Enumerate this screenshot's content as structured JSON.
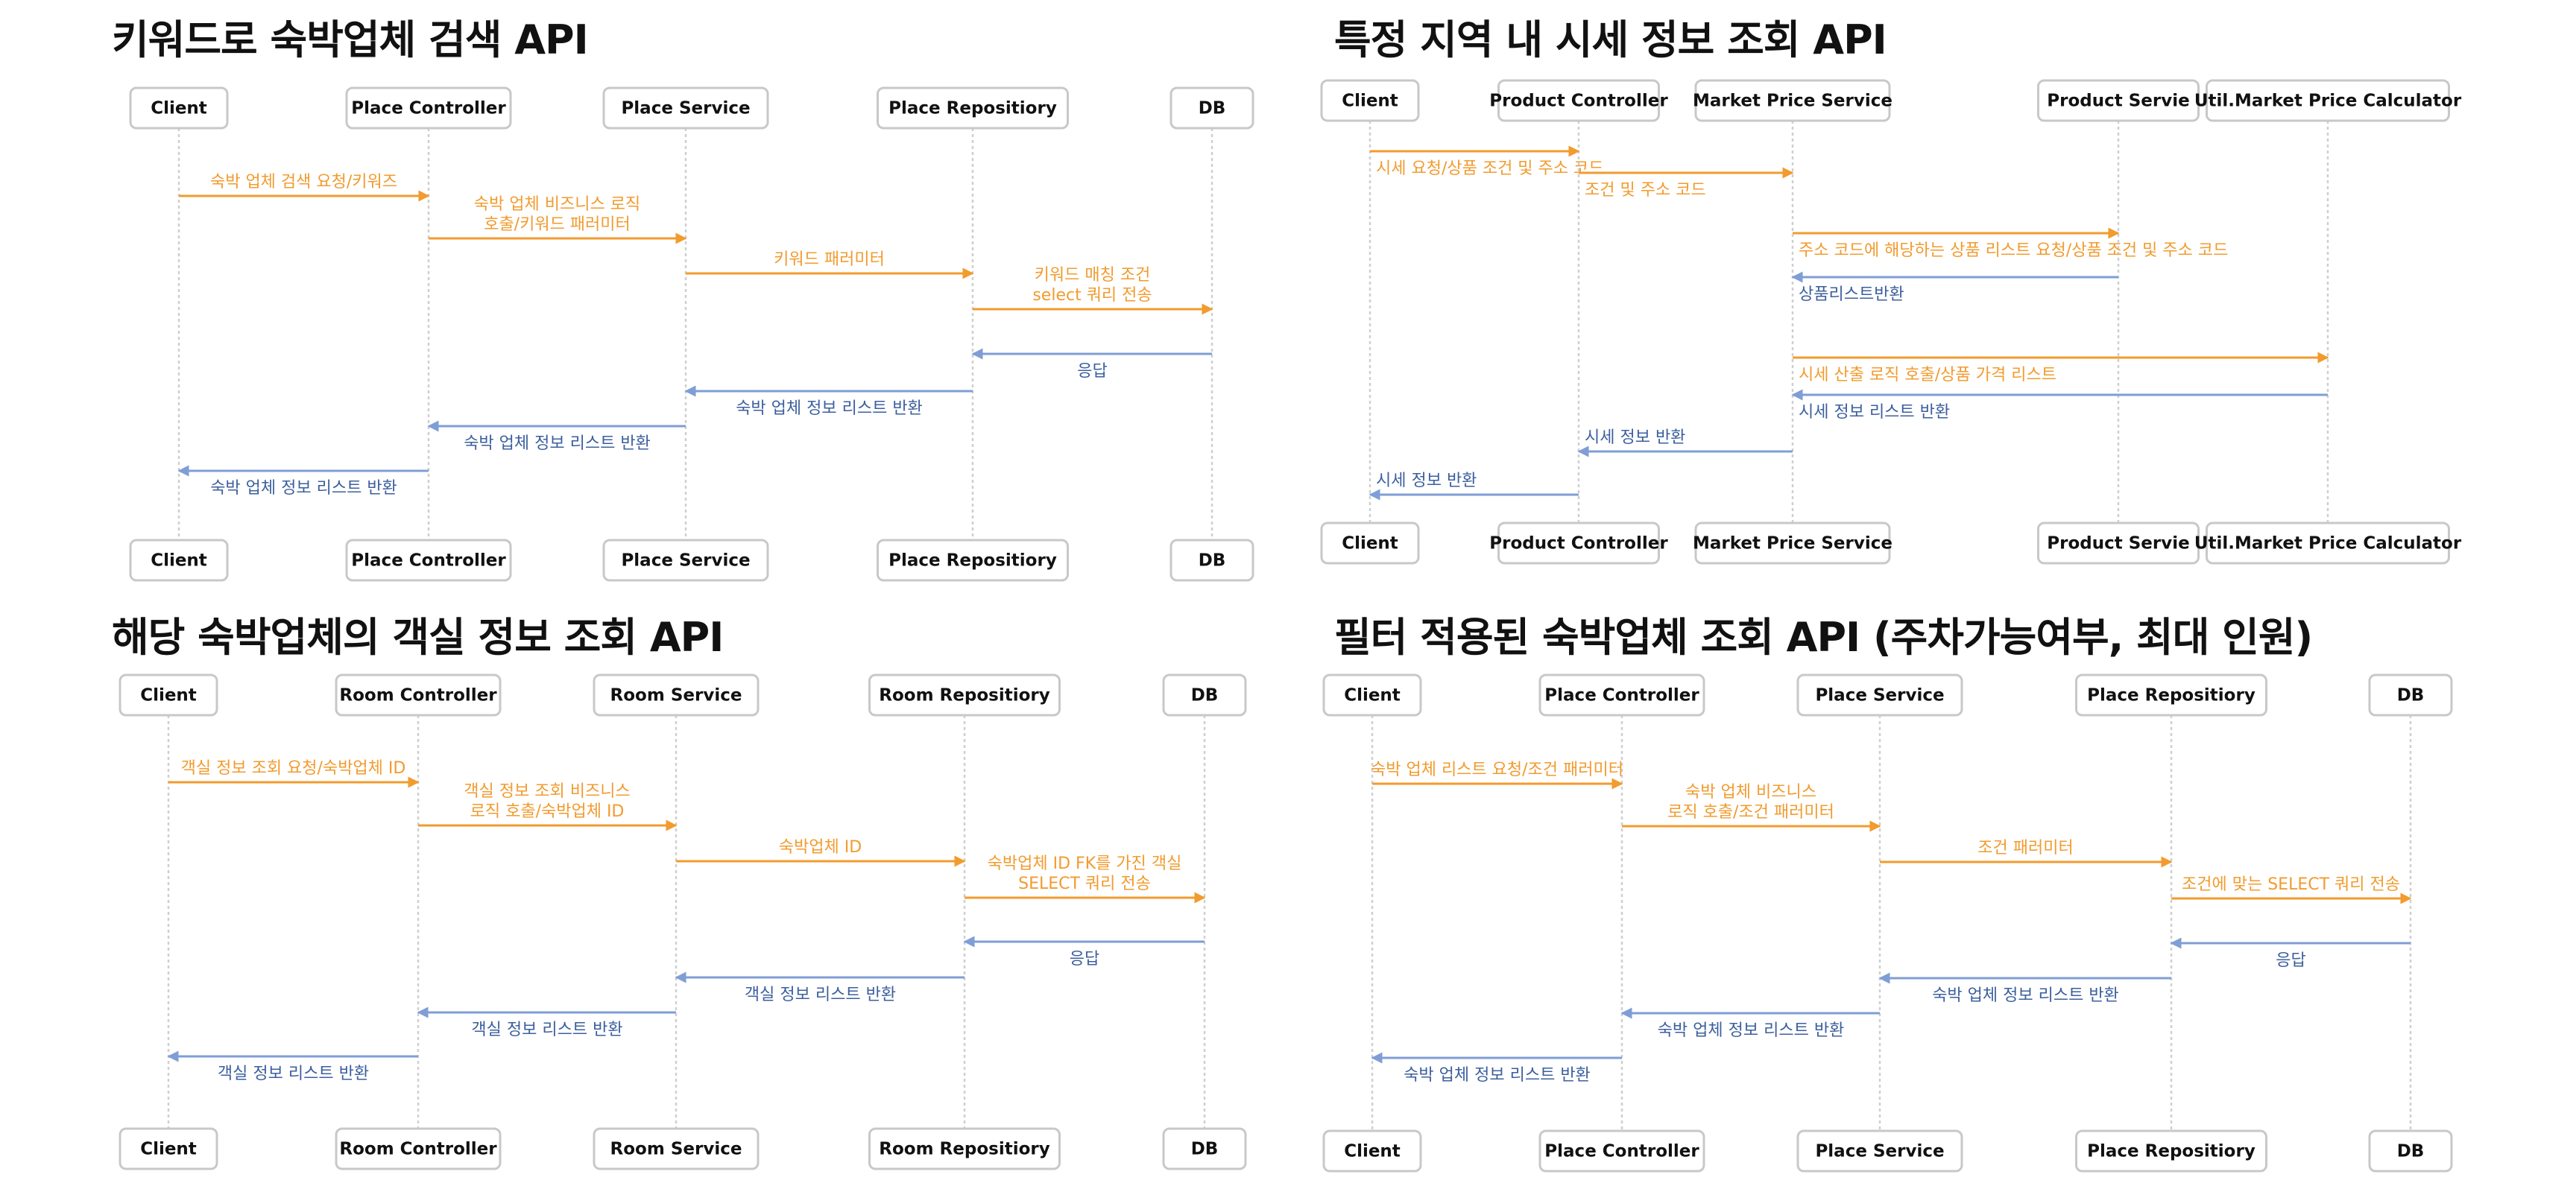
{
  "diagrams": [
    {
      "title": "키워드로 숙박업체 검색 API",
      "participants": [
        "Client",
        "Place Controller",
        "Place Service",
        "Place Repositiory",
        "DB"
      ],
      "messages": [
        {
          "from": 0,
          "to": 1,
          "kind": "request",
          "lines": [
            "숙박 업체 검색 요청/키워즈"
          ]
        },
        {
          "from": 1,
          "to": 2,
          "kind": "request",
          "lines": [
            "숙박 업체 비즈니스 로직",
            "호출/키워드 패러미터"
          ]
        },
        {
          "from": 2,
          "to": 3,
          "kind": "request",
          "lines": [
            "키워드 패러미터"
          ]
        },
        {
          "from": 3,
          "to": 4,
          "kind": "request",
          "lines": [
            "키워드 매칭 조건",
            "select 쿼리 전송"
          ]
        },
        {
          "from": 4,
          "to": 3,
          "kind": "response",
          "lines": [
            "응답"
          ]
        },
        {
          "from": 3,
          "to": 2,
          "kind": "response",
          "lines": [
            "숙박 업체 정보 리스트 반환"
          ]
        },
        {
          "from": 2,
          "to": 1,
          "kind": "response",
          "lines": [
            "숙박 업체 정보 리스트 반환"
          ]
        },
        {
          "from": 1,
          "to": 0,
          "kind": "response",
          "lines": [
            "숙박 업체 정보 리스트 반환"
          ]
        }
      ]
    },
    {
      "title": "특정 지역 내 시세 정보 조회 API",
      "participants": [
        "Client",
        "Product Controller",
        "Market Price Service",
        "Product Servie",
        "Util.Market Price Calculator"
      ],
      "messages": [
        {
          "from": 0,
          "to": 1,
          "kind": "request",
          "lines": [
            "시세 요청/상품 조건 및 주소 코드"
          ]
        },
        {
          "from": 1,
          "to": 2,
          "kind": "request",
          "lines": [
            "조건 및 주소 코드"
          ]
        },
        {
          "from": 2,
          "to": 3,
          "kind": "request",
          "lines": [
            "주소 코드에 해당하는 상품 리스트 요청/상품 조건 및 주소 코드"
          ]
        },
        {
          "from": 3,
          "to": 2,
          "kind": "response",
          "lines": [
            "상품리스트반환"
          ]
        },
        {
          "from": 2,
          "to": 4,
          "kind": "request",
          "lines": [
            "시세 산출 로직 호출/상품 가격 리스트"
          ]
        },
        {
          "from": 4,
          "to": 2,
          "kind": "response",
          "lines": [
            "시세 정보 리스트 반환"
          ]
        },
        {
          "from": 2,
          "to": 1,
          "kind": "response",
          "lines": [
            "시세 정보 반환"
          ]
        },
        {
          "from": 1,
          "to": 0,
          "kind": "response",
          "lines": [
            "시세 정보 반환"
          ]
        }
      ]
    },
    {
      "title": "해당 숙박업체의 객실 정보 조회 API",
      "participants": [
        "Client",
        "Room Controller",
        "Room Service",
        "Room Repositiory",
        "DB"
      ],
      "messages": [
        {
          "from": 0,
          "to": 1,
          "kind": "request",
          "lines": [
            "객실 정보 조회 요청/숙박업체 ID"
          ]
        },
        {
          "from": 1,
          "to": 2,
          "kind": "request",
          "lines": [
            "객실 정보 조회 비즈니스",
            "로직 호출/숙박업체 ID"
          ]
        },
        {
          "from": 2,
          "to": 3,
          "kind": "request",
          "lines": [
            "숙박업체 ID"
          ]
        },
        {
          "from": 3,
          "to": 4,
          "kind": "request",
          "lines": [
            "숙박업체 ID FK를 가진 객실",
            "SELECT  쿼리 전송"
          ]
        },
        {
          "from": 4,
          "to": 3,
          "kind": "response",
          "lines": [
            "응답"
          ]
        },
        {
          "from": 3,
          "to": 2,
          "kind": "response",
          "lines": [
            "객실 정보 리스트 반환"
          ]
        },
        {
          "from": 2,
          "to": 1,
          "kind": "response",
          "lines": [
            "객실 정보 리스트 반환"
          ]
        },
        {
          "from": 1,
          "to": 0,
          "kind": "response",
          "lines": [
            "객실 정보 리스트 반환"
          ]
        }
      ]
    },
    {
      "title": "필터 적용된 숙박업체 조회 API (주차가능여부, 최대 인원)",
      "participants": [
        "Client",
        "Place Controller",
        "Place Service",
        "Place Repositiory",
        "DB"
      ],
      "messages": [
        {
          "from": 0,
          "to": 1,
          "kind": "request",
          "lines": [
            "숙박 업체 리스트 요청/조건 패러미터"
          ]
        },
        {
          "from": 1,
          "to": 2,
          "kind": "request",
          "lines": [
            "숙박 업체 비즈니스",
            "로직 호출/조건 패러미터"
          ]
        },
        {
          "from": 2,
          "to": 3,
          "kind": "request",
          "lines": [
            "조건 패러미터"
          ]
        },
        {
          "from": 3,
          "to": 4,
          "kind": "request",
          "lines": [
            "조건에 맞는 SELECT 쿼리 전송"
          ]
        },
        {
          "from": 4,
          "to": 3,
          "kind": "response",
          "lines": [
            "응답"
          ]
        },
        {
          "from": 3,
          "to": 2,
          "kind": "response",
          "lines": [
            "숙박 업체 정보 리스트 반환"
          ]
        },
        {
          "from": 2,
          "to": 1,
          "kind": "response",
          "lines": [
            "숙박 업체 정보 리스트 반환"
          ]
        },
        {
          "from": 1,
          "to": 0,
          "kind": "response",
          "lines": [
            "숙박 업체 정보 리스트 반환"
          ]
        }
      ]
    }
  ],
  "colors": {
    "request_arrow": "#f29b2e",
    "request_text": "#f29b2e",
    "response_arrow": "#7f9ed6",
    "response_text": "#3c5f9e",
    "box_border": "#c8c8c8",
    "lifeline": "#cfcfcf"
  }
}
